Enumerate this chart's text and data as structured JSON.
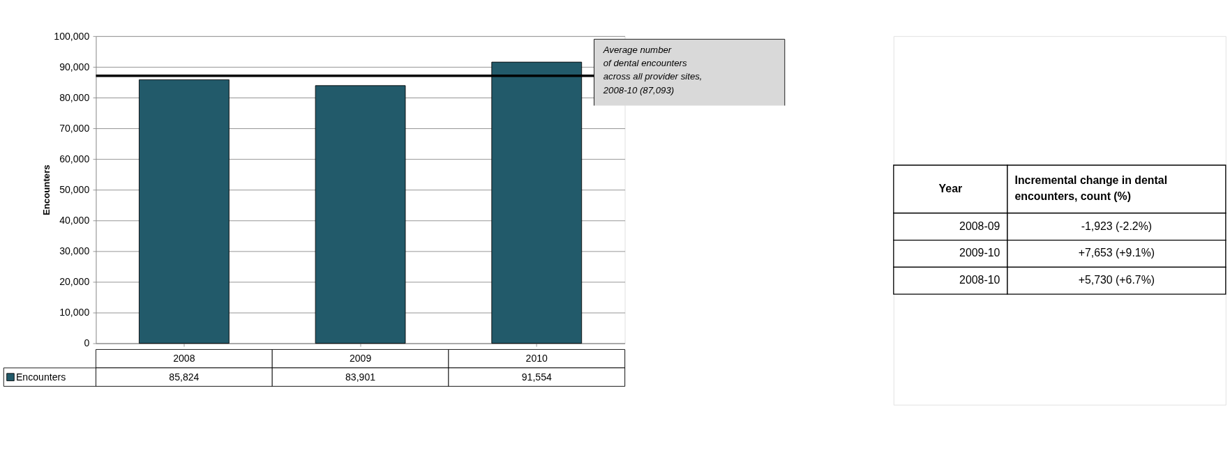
{
  "chart_data": {
    "type": "bar",
    "categories": [
      "2008",
      "2009",
      "2010"
    ],
    "series": [
      {
        "name": "Encounters",
        "color": "#225a6a",
        "values": [
          85824,
          83901,
          91554
        ],
        "value_labels": [
          "85,824",
          "83,901",
          "91,554"
        ]
      }
    ],
    "ylabel": "Encounters",
    "ylim": [
      0,
      100000
    ],
    "yticks": [
      0,
      {
        "value": 10000,
        "label": "10,000"
      },
      {
        "value": 20000,
        "label": "20,000"
      },
      {
        "value": 30000,
        "label": "30,000"
      },
      {
        "value": 40000,
        "label": "40,000"
      },
      {
        "value": 50000,
        "label": "50,000"
      },
      {
        "value": 60000,
        "label": "60,000"
      },
      {
        "value": 70000,
        "label": "70,000"
      },
      {
        "value": 80000,
        "label": "80,000"
      },
      {
        "value": 90000,
        "label": "90,000"
      },
      {
        "value": 100000,
        "label": "100,000"
      }
    ],
    "grid": "y",
    "data_labels": true,
    "ref_lines": [
      {
        "axis": "y",
        "value": 87093,
        "label": "Average number\n of dental encounters\nacross all provider sites,\n 2008-10 (87,093)",
        "color": "#000000"
      }
    ],
    "annotations": [
      "Year",
      "Incremental change in dental\nencounters, count (%)",
      "2008-09",
      "-1,923 (-2.2%)",
      "2009-10",
      "+7,653 (+9.1%)",
      "2008-10",
      "+5,730 (+6.7%)"
    ]
  }
}
